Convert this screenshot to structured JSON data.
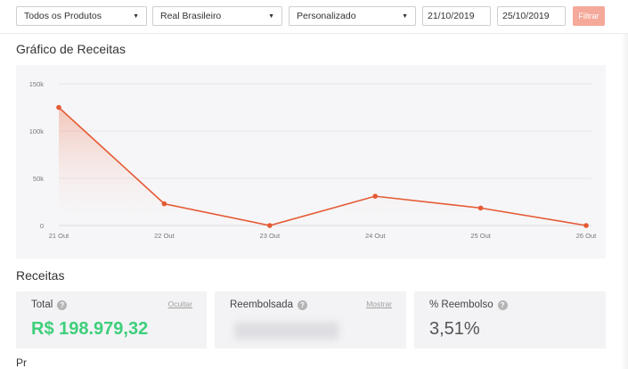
{
  "filters": {
    "product": "Todos os Produtos",
    "currency": "Real Brasileiro",
    "period": "Personalizado",
    "date_start": "21/10/2019",
    "date_end": "25/10/2019",
    "filter_button": "Filtrar"
  },
  "revenue_chart": {
    "section_title": "Gráfico de Receitas"
  },
  "chart_data": {
    "type": "area",
    "categories": [
      "21 Out",
      "22 Out",
      "23 Out",
      "24 Out",
      "25 Out",
      "26 Out"
    ],
    "values": [
      125000,
      23000,
      0,
      31000,
      18500,
      0
    ],
    "ylim": [
      0,
      150000
    ],
    "yticks": [
      0,
      50000,
      100000,
      150000
    ],
    "ytick_labels": [
      "0",
      "50k",
      "100k",
      "150k"
    ],
    "grid": true,
    "color": "#e55a34"
  },
  "receitas": {
    "section_title": "Receitas",
    "cards": [
      {
        "label": "Total",
        "link": "Ocultar",
        "value": "R$ 198.979,32"
      },
      {
        "label": "Reembolsada",
        "link": "Mostrar",
        "value": ""
      },
      {
        "label": "% Reembolso",
        "value": "3,51%"
      }
    ]
  },
  "next_section_hint": "Pr"
}
